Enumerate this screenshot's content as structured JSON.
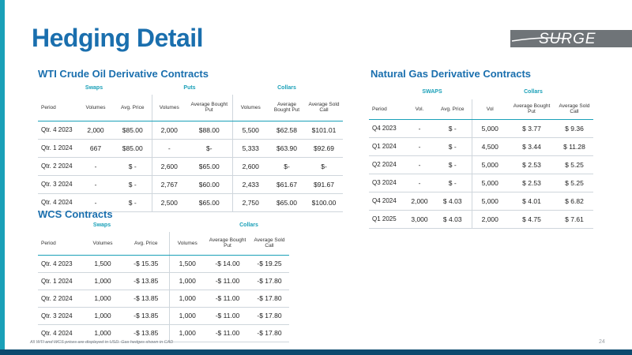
{
  "page_title": "Hedging Detail",
  "logo_text": "SURGE",
  "accent_color": "#1aa0b8",
  "title_color": "#1a6fae",
  "wti": {
    "title": "WTI Crude Oil Derivative Contracts",
    "groups": {
      "swaps": "Swaps",
      "puts": "Puts",
      "collars": "Collars"
    },
    "headers": [
      "Period",
      "Volumes",
      "Avg. Price",
      "Volumes",
      "Average Bought Put",
      "Volumes",
      "Average Bought Put",
      "Average Sold Call"
    ],
    "rows": [
      [
        "Qtr. 4 2023",
        "2,000",
        "$85.00",
        "2,000",
        "$88.00",
        "5,500",
        "$62.58",
        "$101.01"
      ],
      [
        "Qtr. 1 2024",
        "667",
        "$85.00",
        "-",
        "$-",
        "5,333",
        "$63.90",
        "$92.69"
      ],
      [
        "Qtr. 2 2024",
        "-",
        "$ -",
        "2,600",
        "$65.00",
        "2,600",
        "$-",
        "$-"
      ],
      [
        "Qtr. 3 2024",
        "-",
        "$ -",
        "2,767",
        "$60.00",
        "2,433",
        "$61.67",
        "$91.67"
      ],
      [
        "Qtr. 4 2024",
        "-",
        "$ -",
        "2,500",
        "$65.00",
        "2,750",
        "$65.00",
        "$100.00"
      ]
    ]
  },
  "wcs": {
    "title": "WCS Contracts",
    "groups": {
      "swaps": "Swaps",
      "collars": "Collars"
    },
    "headers": [
      "Period",
      "Volumes",
      "Avg. Price",
      "Volumes",
      "Average Bought Put",
      "Average Sold Call"
    ],
    "rows": [
      [
        "Qtr. 4 2023",
        "1,500",
        "-$  15.35",
        "1,500",
        "-$  14.00",
        "-$  19.25"
      ],
      [
        "Qtr. 1 2024",
        "1,000",
        "-$  13.85",
        "1,000",
        "-$  11.00",
        "-$  17.80"
      ],
      [
        "Qtr. 2 2024",
        "1,000",
        "-$  13.85",
        "1,000",
        "-$  11.00",
        "-$  17.80"
      ],
      [
        "Qtr. 3 2024",
        "1,000",
        "-$  13.85",
        "1,000",
        "-$  11.00",
        "-$  17.80"
      ],
      [
        "Qtr. 4 2024",
        "1,000",
        "-$  13.85",
        "1,000",
        "-$  11.00",
        "-$  17.80"
      ]
    ]
  },
  "ng": {
    "title": "Natural Gas Derivative Contracts",
    "groups": {
      "swaps": "SWAPS",
      "collars": "Collars"
    },
    "headers": [
      "Period",
      "Vol.",
      "Avg. Price",
      "Vol",
      "Average Bought Put",
      "Average Sold Call"
    ],
    "rows": [
      [
        "Q4 2023",
        "-",
        "$  -",
        "5,000",
        "$  3.77",
        "$  9.36"
      ],
      [
        "Q1 2024",
        "-",
        "$  -",
        "4,500",
        "$  3.44",
        "$  11.28"
      ],
      [
        "Q2 2024",
        "-",
        "$  -",
        "5,000",
        "$  2.53",
        "$  5.25"
      ],
      [
        "Q3 2024",
        "-",
        "$  -",
        "5,000",
        "$  2.53",
        "$  5.25"
      ],
      [
        "Q4 2024",
        "2,000",
        "$  4.03",
        "5,000",
        "$  4.01",
        "$  6.82"
      ],
      [
        "Q1 2025",
        "3,000",
        "$ 4.03",
        "2,000",
        "$ 4.75",
        "$ 7.61"
      ]
    ]
  },
  "footnote": "All WTI and WCS prices are displayed in USD. Gas hedges shown in CAD",
  "page_number": "24"
}
